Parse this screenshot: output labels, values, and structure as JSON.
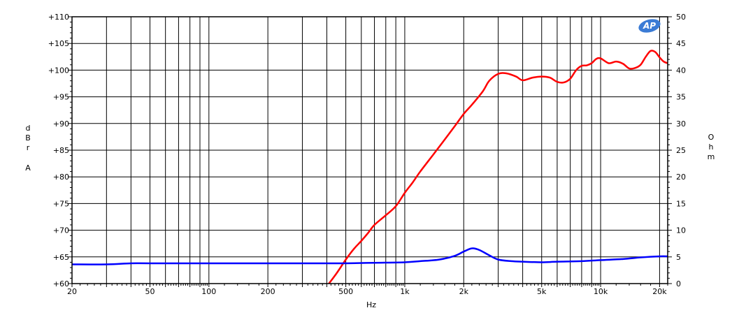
{
  "chart_data": {
    "type": "line",
    "title": "",
    "xlabel": "Hz",
    "ylabel_left": "dBrA",
    "ylabel_right": "Ohm",
    "x_scale": "log",
    "xlim": [
      20,
      22000
    ],
    "ylim_left": [
      60,
      110
    ],
    "ylim_right": [
      0,
      50
    ],
    "grid": true,
    "x_tick_labels": [
      {
        "v": 20,
        "label": "20"
      },
      {
        "v": 50,
        "label": "50"
      },
      {
        "v": 100,
        "label": "100"
      },
      {
        "v": 200,
        "label": "200"
      },
      {
        "v": 500,
        "label": "500"
      },
      {
        "v": 1000,
        "label": "1k"
      },
      {
        "v": 2000,
        "label": "2k"
      },
      {
        "v": 5000,
        "label": "5k"
      },
      {
        "v": 10000,
        "label": "10k"
      },
      {
        "v": 20000,
        "label": "20k"
      }
    ],
    "x_gridlines": [
      30,
      40,
      50,
      60,
      70,
      80,
      90,
      100,
      200,
      300,
      400,
      500,
      600,
      700,
      800,
      900,
      1000,
      2000,
      3000,
      4000,
      5000,
      6000,
      7000,
      8000,
      9000,
      10000,
      20000
    ],
    "y_left_tick_labels": [
      {
        "v": 110,
        "label": "+110"
      },
      {
        "v": 105,
        "label": "+105"
      },
      {
        "v": 100,
        "label": "+100"
      },
      {
        "v": 95,
        "label": "+95"
      },
      {
        "v": 90,
        "label": "+90"
      },
      {
        "v": 85,
        "label": "+85"
      },
      {
        "v": 80,
        "label": "+80"
      },
      {
        "v": 75,
        "label": "+75"
      },
      {
        "v": 70,
        "label": "+70"
      },
      {
        "v": 65,
        "label": "+65"
      },
      {
        "v": 60,
        "label": "+60"
      }
    ],
    "y_right_tick_labels": [
      {
        "v": 50,
        "label": "50"
      },
      {
        "v": 45,
        "label": "45"
      },
      {
        "v": 40,
        "label": "40"
      },
      {
        "v": 35,
        "label": "35"
      },
      {
        "v": 30,
        "label": "30"
      },
      {
        "v": 25,
        "label": "25"
      },
      {
        "v": 20,
        "label": "20"
      },
      {
        "v": 15,
        "label": "15"
      },
      {
        "v": 10,
        "label": "10"
      },
      {
        "v": 5,
        "label": "5"
      },
      {
        "v": 0,
        "label": "0"
      }
    ],
    "series": [
      {
        "axis": "left",
        "color": "#ff0000",
        "points": [
          [
            410,
            60.0
          ],
          [
            450,
            62.0
          ],
          [
            500,
            64.5
          ],
          [
            550,
            66.5
          ],
          [
            600,
            68.0
          ],
          [
            650,
            69.5
          ],
          [
            700,
            71.0
          ],
          [
            800,
            72.8
          ],
          [
            900,
            74.5
          ],
          [
            1000,
            77.0
          ],
          [
            1100,
            79.0
          ],
          [
            1200,
            81.0
          ],
          [
            1400,
            84.2
          ],
          [
            1600,
            87.0
          ],
          [
            1800,
            89.5
          ],
          [
            2000,
            91.8
          ],
          [
            2200,
            93.5
          ],
          [
            2500,
            96.0
          ],
          [
            2700,
            98.0
          ],
          [
            3000,
            99.3
          ],
          [
            3300,
            99.4
          ],
          [
            3700,
            98.8
          ],
          [
            4000,
            98.1
          ],
          [
            4500,
            98.6
          ],
          [
            5000,
            98.8
          ],
          [
            5500,
            98.6
          ],
          [
            6000,
            97.8
          ],
          [
            6500,
            97.7
          ],
          [
            7000,
            98.4
          ],
          [
            7500,
            100.0
          ],
          [
            8000,
            100.8
          ],
          [
            8500,
            100.9
          ],
          [
            9000,
            101.3
          ],
          [
            9500,
            102.1
          ],
          [
            10000,
            102.2
          ],
          [
            11000,
            101.3
          ],
          [
            12000,
            101.6
          ],
          [
            13000,
            101.2
          ],
          [
            14000,
            100.3
          ],
          [
            15000,
            100.4
          ],
          [
            16000,
            101.0
          ],
          [
            17000,
            102.5
          ],
          [
            18000,
            103.6
          ],
          [
            19000,
            103.4
          ],
          [
            20000,
            102.4
          ],
          [
            21000,
            101.6
          ],
          [
            22000,
            101.3
          ]
        ]
      },
      {
        "axis": "right",
        "color": "#0000ff",
        "points": [
          [
            20,
            3.6
          ],
          [
            30,
            3.6
          ],
          [
            40,
            3.8
          ],
          [
            50,
            3.8
          ],
          [
            100,
            3.8
          ],
          [
            200,
            3.8
          ],
          [
            300,
            3.8
          ],
          [
            400,
            3.8
          ],
          [
            500,
            3.8
          ],
          [
            700,
            3.9
          ],
          [
            1000,
            4.0
          ],
          [
            1200,
            4.2
          ],
          [
            1500,
            4.5
          ],
          [
            1800,
            5.2
          ],
          [
            2000,
            6.0
          ],
          [
            2200,
            6.6
          ],
          [
            2400,
            6.3
          ],
          [
            2700,
            5.3
          ],
          [
            3000,
            4.5
          ],
          [
            3500,
            4.2
          ],
          [
            4000,
            4.1
          ],
          [
            5000,
            4.0
          ],
          [
            6000,
            4.1
          ],
          [
            8000,
            4.2
          ],
          [
            10000,
            4.4
          ],
          [
            13000,
            4.6
          ],
          [
            16000,
            4.9
          ],
          [
            20000,
            5.1
          ],
          [
            22000,
            5.1
          ]
        ]
      }
    ]
  },
  "logo_text": "AP"
}
